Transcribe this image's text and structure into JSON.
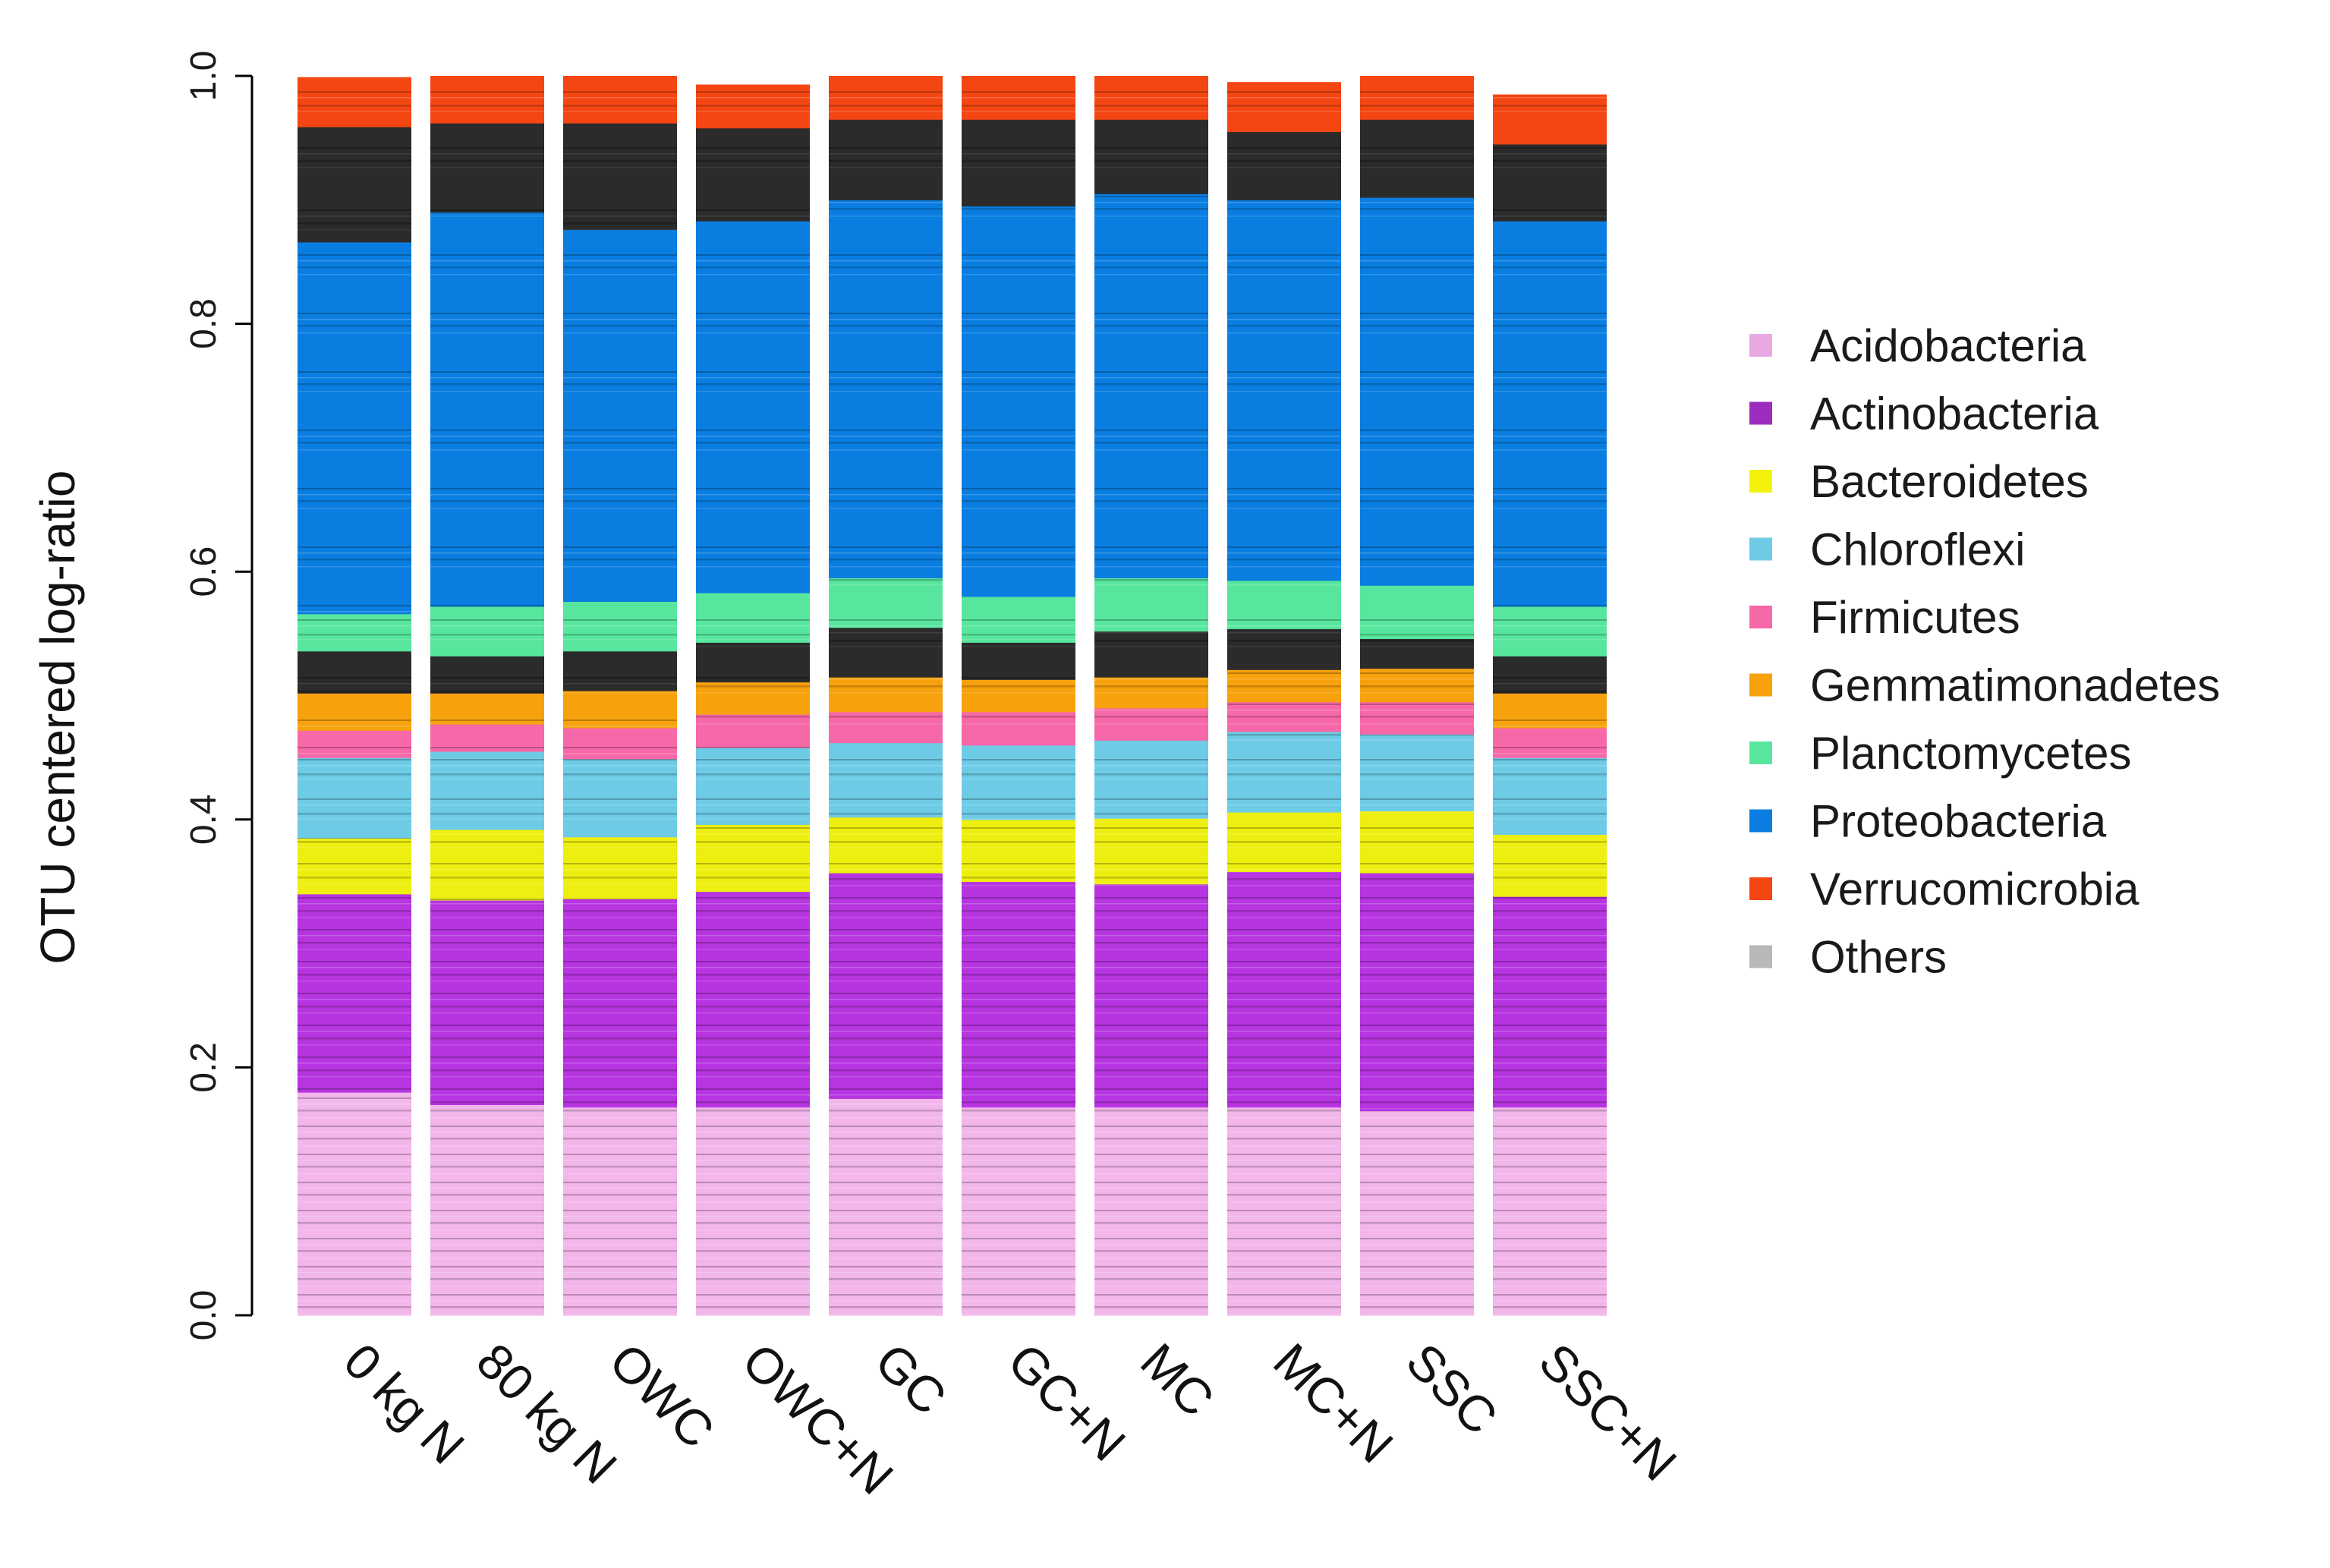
{
  "chart_data": {
    "type": "bar",
    "stacked": true,
    "title": "",
    "xlabel": "",
    "ylabel": "OTU centered log-ratio",
    "ylim": [
      0,
      1
    ],
    "yticks": [
      "0.0",
      "0.2",
      "0.4",
      "0.6",
      "0.8",
      "1.0"
    ],
    "grid": false,
    "legend_position": "right",
    "categories": [
      "0 kg N",
      "80 kg N",
      "OWC",
      "OWC+N",
      "GC",
      "GC+N",
      "MC",
      "MC+N",
      "SSC",
      "SSC+N"
    ],
    "series": [
      {
        "name": "Acidobacteria",
        "color": "#f2b6ea",
        "values": [
          0.18,
          0.17,
          0.168,
          0.168,
          0.175,
          0.168,
          0.168,
          0.168,
          0.165,
          0.168
        ]
      },
      {
        "name": "Actinobacteria",
        "color": "#b635e0",
        "values": [
          0.16,
          0.165,
          0.168,
          0.174,
          0.182,
          0.182,
          0.18,
          0.19,
          0.192,
          0.17
        ]
      },
      {
        "name": "Bacteroidetes",
        "color": "#eeee10",
        "values": [
          0.045,
          0.057,
          0.05,
          0.054,
          0.045,
          0.05,
          0.053,
          0.048,
          0.05,
          0.05
        ]
      },
      {
        "name": "Chloroflexi",
        "color": "#6ecbe6",
        "values": [
          0.065,
          0.063,
          0.063,
          0.062,
          0.06,
          0.06,
          0.063,
          0.065,
          0.062,
          0.062
        ]
      },
      {
        "name": "Firmicutes",
        "color": "#f768a8",
        "values": [
          0.022,
          0.022,
          0.025,
          0.027,
          0.025,
          0.027,
          0.026,
          0.024,
          0.026,
          0.024
        ]
      },
      {
        "name": "Gemmatimonadetes",
        "color": "#f7a10d",
        "values": [
          0.03,
          0.025,
          0.03,
          0.026,
          0.028,
          0.026,
          0.025,
          0.026,
          0.027,
          0.028
        ]
      },
      {
        "name": "Others",
        "color": "#2b2b2b",
        "values": [
          0.034,
          0.03,
          0.032,
          0.032,
          0.04,
          0.03,
          0.037,
          0.033,
          0.024,
          0.03
        ]
      },
      {
        "name": "Planctomycetes",
        "color": "#58e69e",
        "values": [
          0.03,
          0.04,
          0.04,
          0.04,
          0.04,
          0.037,
          0.043,
          0.039,
          0.043,
          0.04
        ]
      },
      {
        "name": "Proteobacteria",
        "color": "#0a7ee0",
        "values": [
          0.3,
          0.318,
          0.3,
          0.3,
          0.305,
          0.315,
          0.31,
          0.307,
          0.313,
          0.311
        ]
      },
      {
        "name": "Others",
        "color": "#2b2b2b",
        "values": [
          0.093,
          0.072,
          0.086,
          0.075,
          0.065,
          0.07,
          0.06,
          0.055,
          0.063,
          0.062
        ]
      },
      {
        "name": "Verrucomicrobia",
        "color": "#f44612",
        "values": [
          0.04,
          0.038,
          0.038,
          0.035,
          0.035,
          0.035,
          0.035,
          0.04,
          0.035,
          0.04
        ]
      }
    ],
    "legend": [
      {
        "label": "Acidobacteria",
        "color": "#e8a9e2"
      },
      {
        "label": "Actinobacteria",
        "color": "#9b2cbe"
      },
      {
        "label": "Bacteroidetes",
        "color": "#f2f20a"
      },
      {
        "label": "Chloroflexi",
        "color": "#6ecbe6"
      },
      {
        "label": "Firmicutes",
        "color": "#f768a8"
      },
      {
        "label": "Gemmatimonadetes",
        "color": "#f7a10d"
      },
      {
        "label": "Planctomycetes",
        "color": "#58e69e"
      },
      {
        "label": "Proteobacteria",
        "color": "#0a7ee0"
      },
      {
        "label": "Verrucomicrobia",
        "color": "#f44612"
      },
      {
        "label": "Others",
        "color": "#b8b8b8"
      }
    ]
  }
}
